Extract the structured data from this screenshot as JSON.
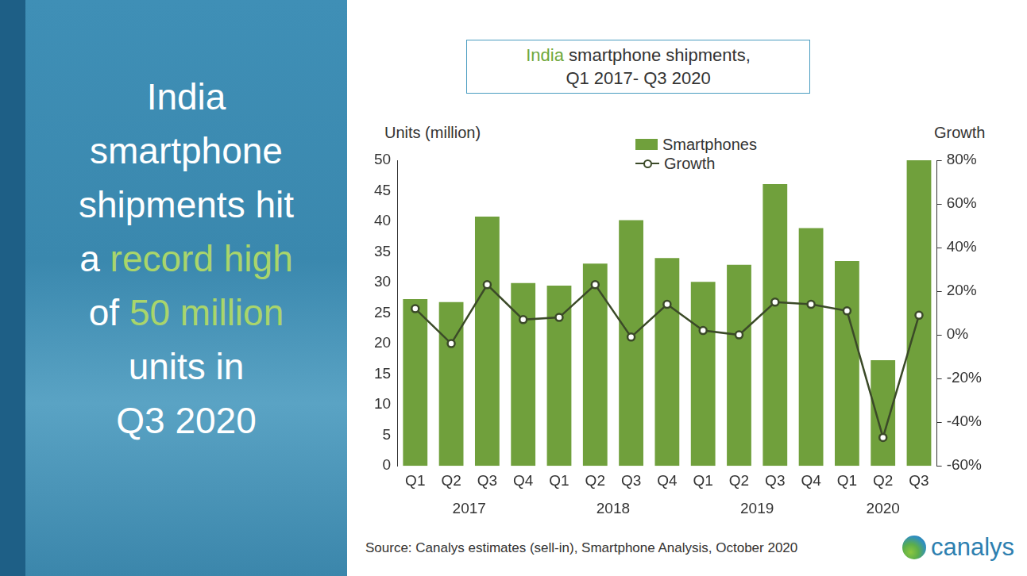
{
  "chart_data": {
    "type": "bar",
    "title": [
      "India smartphone shipments,",
      "Q1 2017- Q3 2020"
    ],
    "title_highlight": "India",
    "categories": [
      "Q1",
      "Q2",
      "Q3",
      "Q4",
      "Q1",
      "Q2",
      "Q3",
      "Q4",
      "Q1",
      "Q2",
      "Q3",
      "Q4",
      "Q1",
      "Q2",
      "Q3"
    ],
    "groups": [
      "2017",
      "2017",
      "2017",
      "2017",
      "2018",
      "2018",
      "2018",
      "2018",
      "2019",
      "2019",
      "2019",
      "2019",
      "2020",
      "2020",
      "2020"
    ],
    "series": [
      {
        "name": "Smartphones",
        "type": "bar",
        "color": "#70a03c",
        "values": [
          27.3,
          26.8,
          40.8,
          29.9,
          29.5,
          33.1,
          40.2,
          34.0,
          30.1,
          32.9,
          46.1,
          38.9,
          33.5,
          17.3,
          50.0
        ]
      },
      {
        "name": "Growth",
        "type": "line",
        "axis": "y2",
        "color": "#3b4a28",
        "marker": "circle",
        "values": [
          12,
          -4,
          23,
          7,
          8,
          23,
          -1,
          14,
          2,
          0,
          15,
          14,
          11,
          -47,
          9
        ]
      }
    ],
    "y_label": "Units (million)",
    "y2_label": "Growth",
    "ylim": [
      0,
      50
    ],
    "yticks": [
      0,
      5,
      10,
      15,
      20,
      25,
      30,
      35,
      40,
      45,
      50
    ],
    "y2lim": [
      -60,
      80
    ],
    "y2ticks": [
      {
        "value": -60,
        "label": "-60%"
      },
      {
        "value": -40,
        "label": "-40%"
      },
      {
        "value": -20,
        "label": "-20%"
      },
      {
        "value": 0,
        "label": "0%"
      },
      {
        "value": 20,
        "label": "20%"
      },
      {
        "value": 40,
        "label": "40%"
      },
      {
        "value": 60,
        "label": "60%"
      },
      {
        "value": 80,
        "label": "80%"
      }
    ],
    "grid": false,
    "legend": "top"
  },
  "headline": {
    "lines": [
      "India",
      "smartphone",
      "shipments hit",
      "a record high",
      "of 50 million",
      "units in",
      "Q3 2020"
    ],
    "highlights": [
      "record high",
      "50 million"
    ]
  },
  "source": "Source: Canalys estimates (sell-in), Smartphone Analysis, October 2020",
  "logo": "canalys"
}
